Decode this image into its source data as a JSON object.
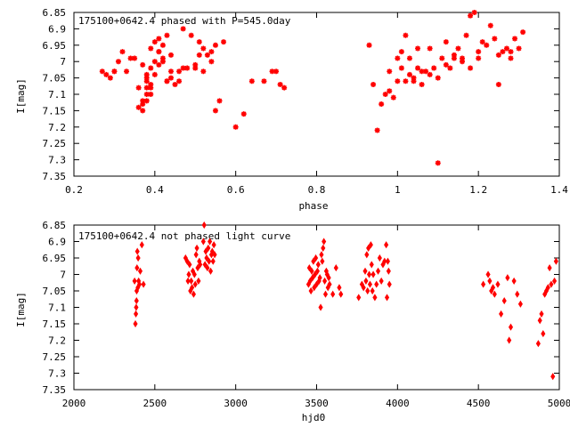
{
  "chart_data": [
    {
      "type": "scatter",
      "title": "175100+0642.4 phased with P=545.0day",
      "xlabel": "phase",
      "ylabel": "I[mag]",
      "xlim": [
        0.2,
        1.4
      ],
      "ylim": [
        6.85,
        7.35
      ],
      "y_inverted": true,
      "grid": false,
      "marker": "plus-cross",
      "color": "#ff0000",
      "xticks": [
        "0.2",
        "0.4",
        "0.6",
        "0.8",
        "1",
        "1.2",
        "1.4"
      ],
      "yticks": [
        "6.85",
        "6.9",
        "6.95",
        "7",
        "7.05",
        "7.1",
        "7.15",
        "7.2",
        "7.25",
        "7.3",
        "7.35"
      ],
      "x": [
        0.27,
        0.28,
        0.29,
        0.3,
        0.31,
        0.32,
        0.33,
        0.35,
        0.36,
        0.37,
        0.37,
        0.37,
        0.38,
        0.38,
        0.38,
        0.38,
        0.38,
        0.39,
        0.39,
        0.39,
        0.39,
        0.4,
        0.4,
        0.4,
        0.41,
        0.41,
        0.41,
        0.42,
        0.42,
        0.43,
        0.43,
        0.44,
        0.44,
        0.44,
        0.45,
        0.46,
        0.47,
        0.48,
        0.49,
        0.5,
        0.51,
        0.52,
        0.52,
        0.53,
        0.54,
        0.55,
        0.56,
        0.57,
        0.6,
        0.62,
        0.64,
        0.67,
        0.69,
        0.7,
        0.71,
        0.72,
        0.93,
        0.94,
        0.95,
        0.96,
        0.97,
        0.98,
        0.99,
        1.0,
        1.01,
        1.01,
        1.02,
        1.03,
        1.03,
        1.04,
        1.05,
        1.05,
        1.06,
        1.07,
        1.08,
        1.09,
        1.1,
        1.11,
        1.12,
        1.13,
        1.14,
        1.15,
        1.16,
        1.17,
        1.18,
        1.19,
        1.2,
        1.21,
        1.22,
        1.23,
        1.24,
        1.25,
        1.26,
        1.27,
        1.28,
        1.29,
        1.3,
        1.31,
        0.36,
        0.37,
        0.39,
        0.41,
        0.43,
        0.47,
        0.51,
        0.54,
        0.98,
        1.02,
        1.06,
        1.1,
        1.14,
        1.18,
        1.25,
        0.3,
        0.34,
        0.38,
        0.42,
        0.46,
        0.5,
        0.55,
        1.0,
        1.04,
        1.08,
        1.12,
        1.16,
        1.2,
        1.28
      ],
      "y": [
        7.03,
        7.04,
        7.05,
        7.03,
        7.0,
        6.97,
        7.03,
        6.99,
        7.08,
        7.12,
        7.15,
        7.13,
        7.1,
        7.08,
        7.06,
        7.12,
        7.05,
        7.1,
        7.02,
        6.96,
        7.07,
        6.94,
        7.0,
        7.04,
        6.93,
        6.97,
        7.01,
        6.95,
        7.0,
        6.92,
        7.06,
        6.98,
        7.03,
        7.05,
        7.07,
        7.06,
        6.9,
        7.02,
        6.92,
        7.02,
        6.98,
        6.96,
        7.03,
        6.98,
        7.0,
        7.15,
        7.12,
        6.94,
        7.2,
        7.16,
        7.06,
        7.06,
        7.03,
        7.03,
        7.07,
        7.08,
        6.95,
        7.07,
        7.21,
        7.13,
        7.1,
        7.03,
        7.11,
        7.06,
        6.97,
        7.02,
        6.92,
        7.04,
        6.99,
        7.05,
        7.02,
        6.96,
        7.07,
        7.03,
        6.96,
        7.02,
        7.31,
        6.99,
        6.94,
        7.02,
        6.98,
        6.96,
        7.0,
        6.92,
        6.86,
        6.85,
        6.99,
        6.94,
        6.95,
        6.89,
        6.93,
        7.07,
        6.97,
        6.96,
        6.99,
        6.93,
        6.96,
        6.91,
        7.14,
        7.01,
        7.08,
        6.97,
        7.06,
        7.02,
        6.94,
        6.97,
        7.09,
        7.06,
        7.03,
        7.05,
        6.99,
        7.02,
        6.98,
        7.03,
        6.99,
        7.04,
        6.99,
        7.03,
        7.01,
        6.95,
        6.99,
        7.06,
        7.04,
        7.01,
        6.99,
        6.97,
        6.97
      ]
    },
    {
      "type": "scatter",
      "title": "175100+0642.4 not phased light curve",
      "xlabel": "hjd0",
      "ylabel": "I[mag]",
      "xlim": [
        2000,
        5000
      ],
      "ylim": [
        6.85,
        7.35
      ],
      "y_inverted": true,
      "grid": false,
      "marker": "diamond",
      "color": "#ff0000",
      "xticks": [
        "2000",
        "2500",
        "3000",
        "3500",
        "4000",
        "4500",
        "5000"
      ],
      "yticks": [
        "6.85",
        "6.9",
        "6.95",
        "7",
        "7.05",
        "7.1",
        "7.15",
        "7.2",
        "7.25",
        "7.3",
        "7.35"
      ],
      "x": [
        2375,
        2380,
        2383,
        2385,
        2387,
        2388,
        2390,
        2392,
        2395,
        2397,
        2400,
        2405,
        2410,
        2420,
        2430,
        2690,
        2700,
        2705,
        2710,
        2715,
        2720,
        2725,
        2730,
        2735,
        2740,
        2745,
        2750,
        2755,
        2760,
        2765,
        2770,
        2775,
        2780,
        2800,
        2805,
        2810,
        2815,
        2820,
        2825,
        2830,
        2835,
        2840,
        2845,
        2850,
        2855,
        2860,
        2865,
        2870,
        3450,
        3455,
        3460,
        3465,
        3470,
        3475,
        3480,
        3485,
        3490,
        3495,
        3500,
        3505,
        3510,
        3515,
        3520,
        3525,
        3530,
        3535,
        3540,
        3545,
        3550,
        3555,
        3560,
        3565,
        3570,
        3575,
        3580,
        3600,
        3620,
        3640,
        3650,
        3760,
        3780,
        3790,
        3800,
        3805,
        3810,
        3815,
        3820,
        3825,
        3830,
        3835,
        3840,
        3845,
        3850,
        3860,
        3870,
        3880,
        3890,
        3900,
        3910,
        3920,
        3930,
        3935,
        3940,
        3945,
        3950,
        4530,
        4560,
        4570,
        4580,
        4590,
        4600,
        4620,
        4640,
        4660,
        4680,
        4690,
        4700,
        4720,
        4740,
        4760,
        4870,
        4880,
        4890,
        4900,
        4910,
        4920,
        4930,
        4940,
        4950,
        4960,
        4970,
        4980
      ],
      "y": [
        7.02,
        7.15,
        7.12,
        7.1,
        7.08,
        7.05,
        6.98,
        6.93,
        7.04,
        6.95,
        7.02,
        7.03,
        6.99,
        6.91,
        7.03,
        6.95,
        6.96,
        7.02,
        7.0,
        6.97,
        7.05,
        7.02,
        7.04,
        6.99,
        7.06,
        7.0,
        7.03,
        6.94,
        6.92,
        6.98,
        7.02,
        6.96,
        6.97,
        6.9,
        6.85,
        6.97,
        6.93,
        6.95,
        6.98,
        6.92,
        6.96,
        6.9,
        6.99,
        6.94,
        6.93,
        6.96,
        6.91,
        6.94,
        7.03,
        6.98,
        7.02,
        7.05,
        6.99,
        7.01,
        6.96,
        7.04,
        7.0,
        6.95,
        7.03,
        6.99,
        6.97,
        7.02,
        7.01,
        7.1,
        6.94,
        6.96,
        6.92,
        6.9,
        7.02,
        7.06,
        6.99,
        7.0,
        7.04,
        7.01,
        7.03,
        7.06,
        6.98,
        7.04,
        7.06,
        7.07,
        7.03,
        7.04,
        6.99,
        7.02,
        6.94,
        7.05,
        6.92,
        7.0,
        7.03,
        6.91,
        6.97,
        7.05,
        7.0,
        7.07,
        7.03,
        6.99,
        6.95,
        7.02,
        6.97,
        6.96,
        6.91,
        7.07,
        6.96,
        6.99,
        7.03,
        7.03,
        7.0,
        7.02,
        7.05,
        7.04,
        7.06,
        7.03,
        7.12,
        7.08,
        7.01,
        7.2,
        7.16,
        7.02,
        7.06,
        7.09,
        7.21,
        7.14,
        7.12,
        7.18,
        7.06,
        7.05,
        7.04,
        6.98,
        7.03,
        7.31,
        7.02,
        6.96
      ]
    }
  ]
}
